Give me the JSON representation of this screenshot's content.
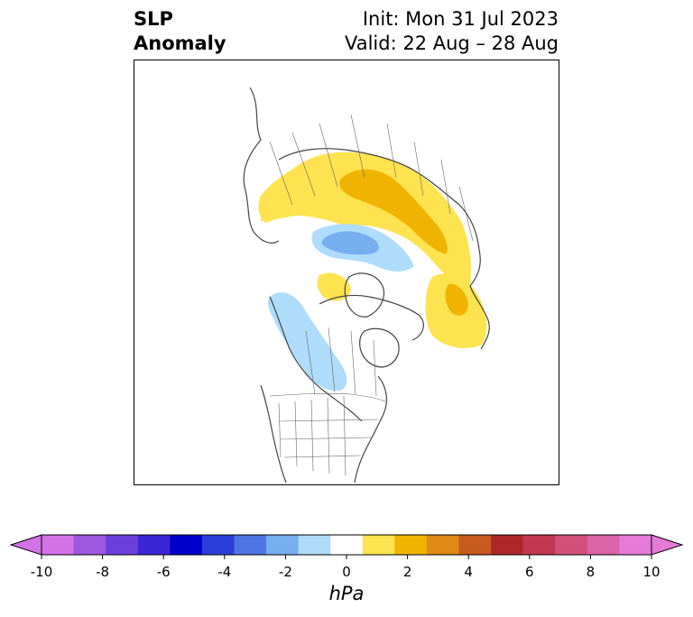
{
  "title": {
    "left_line1": "SLP",
    "left_line2": "Anomaly",
    "right_line1": "Init: Mon 31 Jul 2023",
    "right_line2": "Valid: 22 Aug – 28 Aug"
  },
  "colorbar": {
    "units": "hPa",
    "min": -10,
    "max": 10,
    "step": 1,
    "extend": "both",
    "tick_labels": [
      "-10",
      "-8",
      "-6",
      "-4",
      "-2",
      "0",
      "2",
      "4",
      "6",
      "8",
      "10"
    ],
    "colors": [
      "#d272e6",
      "#9e57e0",
      "#6b3fdb",
      "#3a26d6",
      "#0000cc",
      "#2a3fd9",
      "#4f74e3",
      "#76aef0",
      "#aedcfa",
      "#ffffff",
      "#fde34f",
      "#f0b400",
      "#de8a14",
      "#c75a1e",
      "#b02727",
      "#c23850",
      "#d0507a",
      "#dd63a8",
      "#e67ad8"
    ]
  },
  "map": {
    "projection": "north-polar-stereographic",
    "variable": "sea-level-pressure-anomaly",
    "features": [
      {
        "name": "eurasia-positive-anomaly",
        "level": 1,
        "color": "#fde34f"
      },
      {
        "name": "siberia-positive-core",
        "level": 2,
        "color": "#f0b400"
      },
      {
        "name": "north-pacific-positive-anomaly",
        "level": 1,
        "color": "#fde34f"
      },
      {
        "name": "arctic-negative-anomaly",
        "level": -1,
        "color": "#aedcfa"
      },
      {
        "name": "arctic-negative-core",
        "level": -2,
        "color": "#76aef0"
      },
      {
        "name": "west-north-america-negative-anomaly",
        "level": -1,
        "color": "#aedcfa"
      }
    ]
  }
}
